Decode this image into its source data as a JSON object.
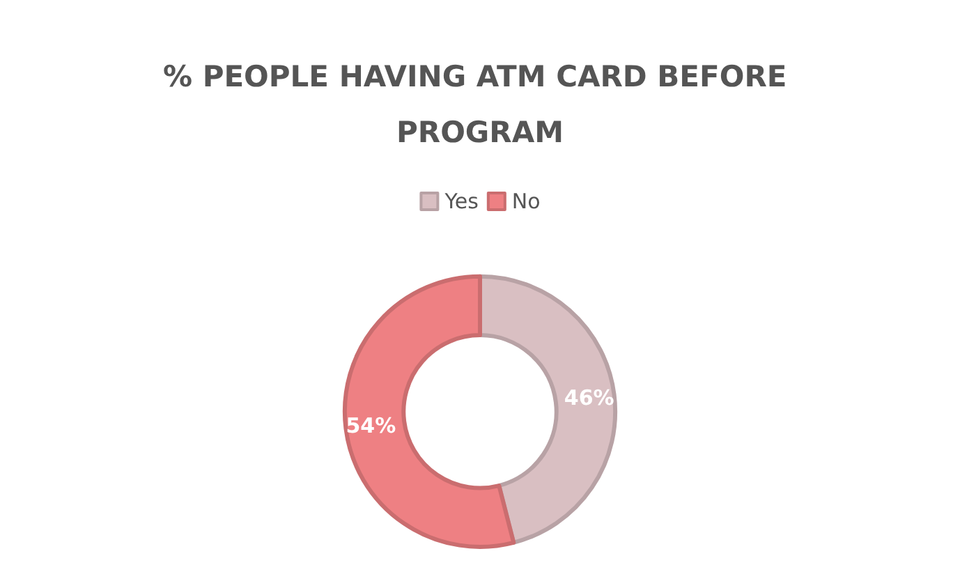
{
  "chart_data": {
    "type": "donut",
    "title": "% PEOPLE HAVING ATM CARD BEFORE PROGRAM",
    "categories": [
      "Yes",
      "No"
    ],
    "values": [
      46,
      54
    ],
    "value_labels": [
      "46%",
      "54%"
    ],
    "colors": [
      "#d9bfc2",
      "#ee8083"
    ],
    "legend": "top"
  }
}
